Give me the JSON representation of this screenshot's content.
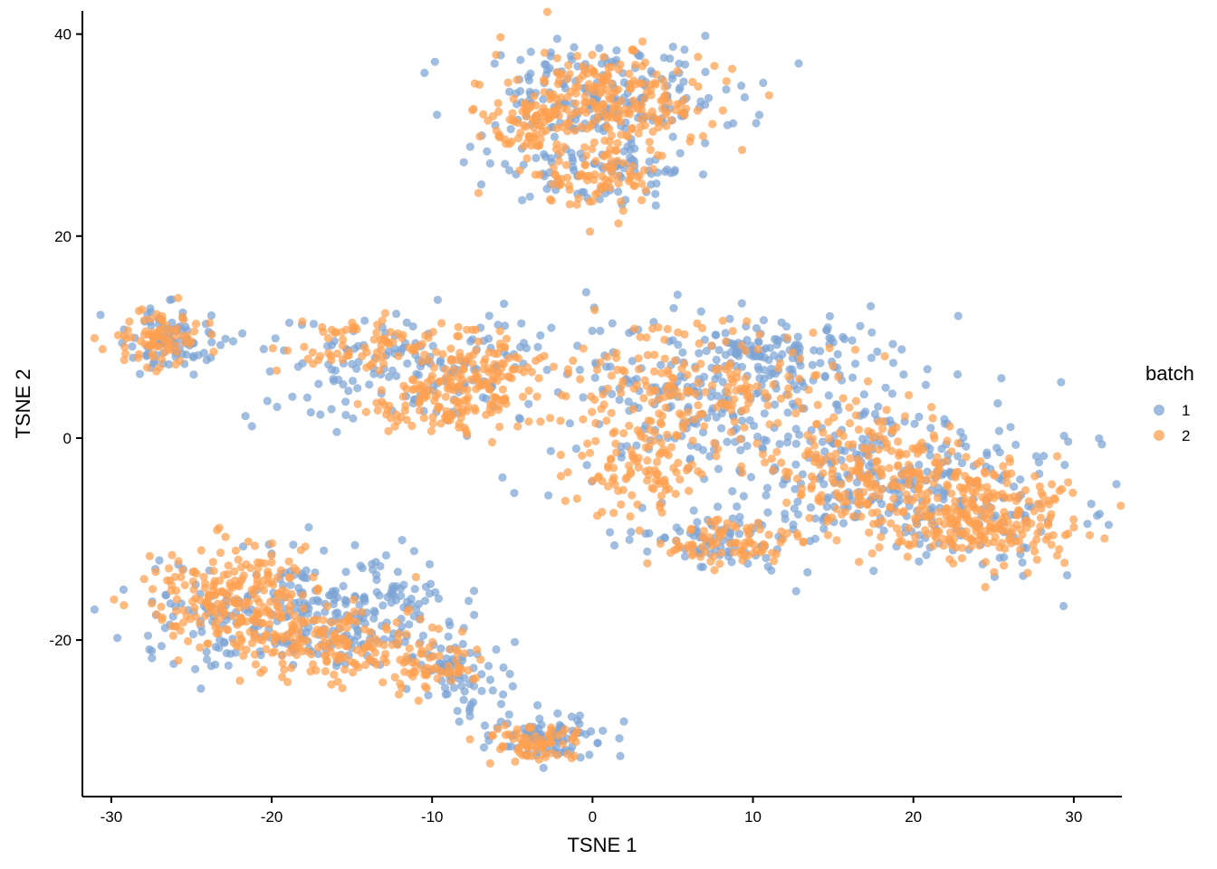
{
  "chart_data": {
    "type": "scatter",
    "xlabel": "TSNE 1",
    "ylabel": "TSNE 2",
    "xlim": [
      -31.8,
      33
    ],
    "ylim": [
      -35.5,
      42.3
    ],
    "xticks": [
      -30,
      -20,
      -10,
      0,
      10,
      20,
      30
    ],
    "yticks": [
      -20,
      0,
      20,
      40
    ],
    "xtick_labels": [
      "-30",
      "-20",
      "-10",
      "0",
      "10",
      "20",
      "30"
    ],
    "ytick_labels": [
      "-20",
      "0",
      "20",
      "40"
    ],
    "grid": false,
    "legend": {
      "title": "batch",
      "position": "right"
    },
    "colors": {
      "1": "#7DA3D4",
      "2": "#FFA04F"
    },
    "series": [
      {
        "name": "1",
        "color": "#7DA3D4",
        "clusters": [
          {
            "cx": 0.5,
            "cy": 34,
            "sx": 4.2,
            "sy": 2.4,
            "n": 200
          },
          {
            "cx": 0,
            "cy": 26.5,
            "sx": 3.2,
            "sy": 1.8,
            "n": 90
          },
          {
            "cx": -26.5,
            "cy": 9.5,
            "sx": 1.6,
            "sy": 1.6,
            "n": 90
          },
          {
            "cx": -11,
            "cy": 7,
            "sx": 4.8,
            "sy": 2.8,
            "n": 160
          },
          {
            "cx": 8,
            "cy": 4,
            "sx": 6,
            "sy": 4,
            "n": 260
          },
          {
            "cx": 11,
            "cy": 9,
            "sx": 2.5,
            "sy": 1.5,
            "n": 80
          },
          {
            "cx": 20,
            "cy": -5,
            "sx": 5.5,
            "sy": 4,
            "n": 300
          },
          {
            "cx": 8,
            "cy": -10,
            "sx": 3,
            "sy": 1.5,
            "n": 80
          },
          {
            "cx": -20,
            "cy": -18,
            "sx": 4.5,
            "sy": 3,
            "n": 200
          },
          {
            "cx": -13,
            "cy": -17,
            "sx": 3,
            "sy": 2.5,
            "n": 110
          },
          {
            "cx": -8.5,
            "cy": -23.5,
            "sx": 1.5,
            "sy": 2,
            "n": 70
          },
          {
            "cx": -3,
            "cy": -29.5,
            "sx": 2,
            "sy": 1.1,
            "n": 90
          }
        ]
      },
      {
        "name": "2",
        "color": "#FFA04F",
        "clusters": [
          {
            "cx": 1,
            "cy": 33.5,
            "sx": 3.2,
            "sy": 2.5,
            "n": 220
          },
          {
            "cx": -4,
            "cy": 31,
            "sx": 1.5,
            "sy": 1.5,
            "n": 60
          },
          {
            "cx": 0.5,
            "cy": 26,
            "sx": 2.2,
            "sy": 1.8,
            "n": 90
          },
          {
            "cx": -26.8,
            "cy": 9.5,
            "sx": 1.4,
            "sy": 1.3,
            "n": 80
          },
          {
            "cx": -6.5,
            "cy": 6,
            "sx": 2,
            "sy": 2,
            "n": 110
          },
          {
            "cx": -13.5,
            "cy": 9,
            "sx": 2.8,
            "sy": 1.4,
            "n": 90
          },
          {
            "cx": -10,
            "cy": 3,
            "sx": 2.5,
            "sy": 1.5,
            "n": 80
          },
          {
            "cx": 7,
            "cy": 5,
            "sx": 4.5,
            "sy": 3,
            "n": 200
          },
          {
            "cx": 3,
            "cy": -3,
            "sx": 2,
            "sy": 2.2,
            "n": 100
          },
          {
            "cx": 18,
            "cy": -4,
            "sx": 3.5,
            "sy": 3,
            "n": 250
          },
          {
            "cx": 25,
            "cy": -8,
            "sx": 2.8,
            "sy": 2.5,
            "n": 220
          },
          {
            "cx": 8.5,
            "cy": -10.5,
            "sx": 2,
            "sy": 1.3,
            "n": 80
          },
          {
            "cx": -22.5,
            "cy": -16,
            "sx": 2.8,
            "sy": 2.8,
            "n": 220
          },
          {
            "cx": -16,
            "cy": -20,
            "sx": 3,
            "sy": 2,
            "n": 150
          },
          {
            "cx": -10,
            "cy": -22.5,
            "sx": 1.8,
            "sy": 1.5,
            "n": 60
          },
          {
            "cx": -3.5,
            "cy": -30,
            "sx": 1.5,
            "sy": 0.8,
            "n": 70
          }
        ]
      }
    ]
  }
}
